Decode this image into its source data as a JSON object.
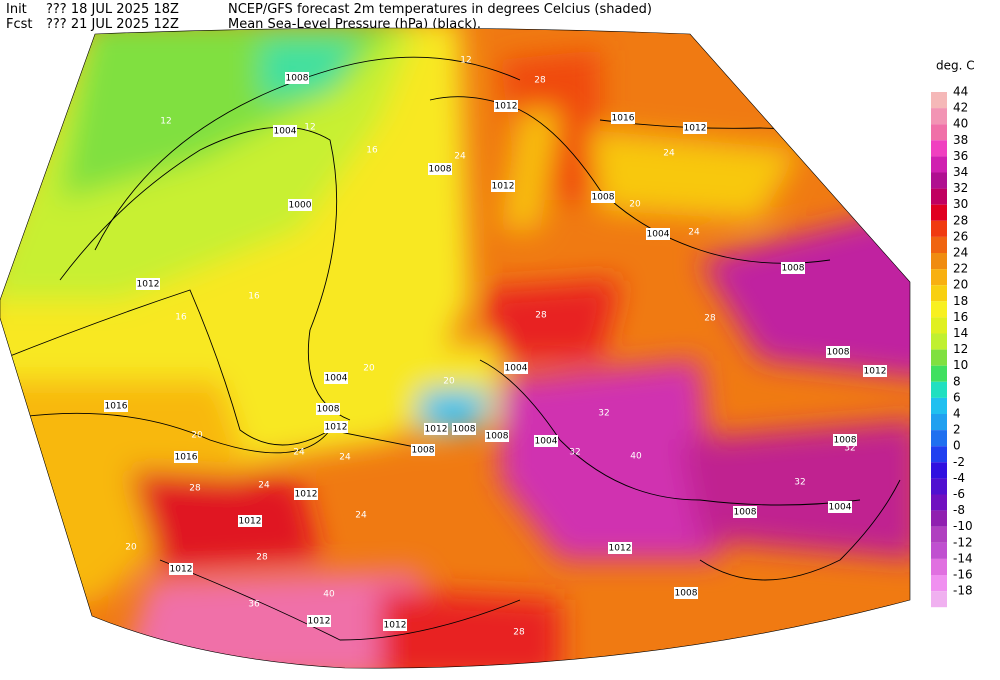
{
  "header": {
    "init_label": "Init",
    "init_time": "??? 18 JUL 2025 18Z",
    "fcst_label": "Fcst",
    "fcst_time": "??? 21 JUL 2025 12Z",
    "title_line_1": "NCEP/GFS forecast 2m temperatures in degrees Celcius (shaded)",
    "title_line_2": "Mean Sea-Level Pressure (hPa) (black)."
  },
  "legend": {
    "title": "deg. C",
    "levels": [
      44,
      42,
      40,
      38,
      36,
      34,
      32,
      30,
      28,
      26,
      24,
      22,
      20,
      18,
      16,
      14,
      12,
      10,
      8,
      6,
      4,
      2,
      0,
      -2,
      -4,
      -6,
      -8,
      -10,
      -12,
      -14,
      -16,
      -18
    ],
    "colors": [
      "#f5b8b8",
      "#f294b4",
      "#f070a8",
      "#f040c0",
      "#d020b0",
      "#b01090",
      "#c00060",
      "#e00020",
      "#f03a10",
      "#f06410",
      "#f08c10",
      "#f8b010",
      "#f8d010",
      "#f8f020",
      "#e0f020",
      "#c0f030",
      "#80e040",
      "#40e060",
      "#20e0c0",
      "#20c0f0",
      "#20a0f0",
      "#2070f0",
      "#2040f0",
      "#3010e0",
      "#5010d0",
      "#7010c0",
      "#9020b0",
      "#b040c0",
      "#c050d0",
      "#e070e0",
      "#f090f0",
      "#f0b0f0"
    ]
  },
  "isobar_labels": [
    "1008",
    "1004",
    "1000",
    "1012",
    "1016",
    "1008",
    "1012",
    "1012",
    "1016",
    "1012",
    "1008",
    "1004",
    "1008",
    "1004",
    "1008",
    "1012",
    "1004",
    "1012",
    "1008",
    "1008",
    "1008",
    "1004",
    "1016",
    "1012",
    "1012",
    "1012",
    "1008",
    "1004",
    "1008",
    "1012",
    "1008",
    "1008",
    "1012",
    "1012",
    "1012"
  ],
  "isotherm_labels": [
    "12",
    "12",
    "12",
    "16",
    "16",
    "16",
    "20",
    "20",
    "24",
    "24",
    "24",
    "20",
    "28",
    "28",
    "28",
    "28",
    "28",
    "24",
    "24",
    "24",
    "24",
    "32",
    "32",
    "40",
    "40",
    "36",
    "28",
    "20",
    "20",
    "32",
    "32"
  ]
}
